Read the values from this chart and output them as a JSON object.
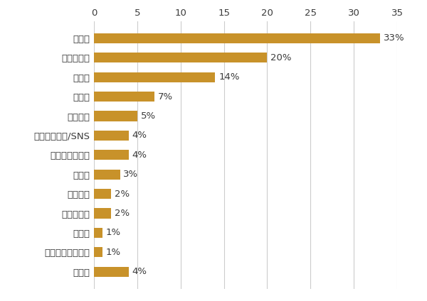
{
  "categories": [
    "職場で",
    "友人の紹介",
    "学校で",
    "合コン",
    "趣味の場",
    "ネット掲示板/SNS",
    "出会い系サイト",
    "ナンパ",
    "お見合い",
    "結婚相談所",
    "街コン",
    "ボランティア活動",
    "その他"
  ],
  "values": [
    33,
    20,
    14,
    7,
    5,
    4,
    4,
    3,
    2,
    2,
    1,
    1,
    4
  ],
  "bar_color": "#C8922A",
  "label_color": "#3a3a3a",
  "label_fontsize": 9.5,
  "tick_fontsize": 9.5,
  "xlim": [
    0,
    35
  ],
  "xticks": [
    0,
    5,
    10,
    15,
    20,
    25,
    30,
    35
  ],
  "grid_color": "#cccccc",
  "background_color": "#ffffff",
  "bar_height": 0.52
}
